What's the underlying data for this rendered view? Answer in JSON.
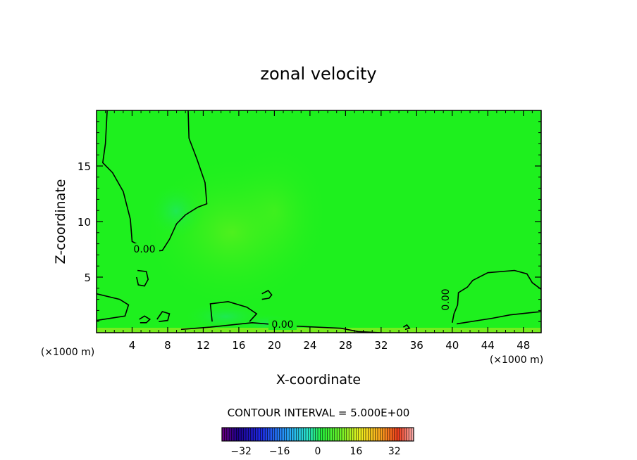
{
  "chart_data": {
    "type": "contour",
    "title": "zonal velocity",
    "xlabel": "X-coordinate",
    "ylabel": "Z-coordinate",
    "x_unit_left": "(×1000 m)",
    "x_unit_right": "(×1000 m)",
    "xlim": [
      0,
      50
    ],
    "ylim": [
      0,
      20
    ],
    "xticks": [
      4,
      8,
      12,
      16,
      20,
      24,
      28,
      32,
      36,
      40,
      44,
      48
    ],
    "yticks": [
      5,
      10,
      15
    ],
    "contour_labels": [
      "0.00",
      "0.00",
      "0.00"
    ],
    "contour_interval_text": "CONTOUR INTERVAL = 5.000E+00",
    "colorbar": {
      "ticks": [
        -32,
        -16,
        0,
        16,
        32
      ],
      "range": [
        -40,
        40
      ]
    },
    "field_color": "#1ef01e",
    "contour_color": "#000000",
    "contour_zero_lines": [
      [
        [
          1.2,
          20
        ],
        [
          1.0,
          17
        ],
        [
          0.7,
          15.3
        ],
        [
          1.8,
          14.4
        ],
        [
          3.0,
          12.7
        ],
        [
          3.8,
          10.2
        ],
        [
          4.0,
          8.2
        ],
        [
          5.0,
          7.8
        ],
        [
          6.2,
          7.3
        ],
        [
          7.4,
          7.4
        ],
        [
          8.2,
          8.4
        ],
        [
          9.0,
          9.8
        ],
        [
          10.0,
          10.6
        ],
        [
          11.4,
          11.3
        ],
        [
          12.4,
          11.6
        ],
        [
          12.2,
          13.5
        ],
        [
          11.3,
          15.6
        ],
        [
          10.4,
          17.5
        ],
        [
          10.3,
          20
        ]
      ],
      [
        [
          40.0,
          0.9
        ],
        [
          40.2,
          1.7
        ],
        [
          40.6,
          2.5
        ],
        [
          40.7,
          3.6
        ],
        [
          41.7,
          4.1
        ],
        [
          42.3,
          4.7
        ],
        [
          44.0,
          5.4
        ],
        [
          47.0,
          5.6
        ],
        [
          48.4,
          5.3
        ],
        [
          49.0,
          4.5
        ],
        [
          50,
          3.9
        ]
      ],
      [
        [
          0,
          3.5
        ],
        [
          2.6,
          3.0
        ],
        [
          3.6,
          2.5
        ],
        [
          3.2,
          1.5
        ],
        [
          0,
          1.1
        ]
      ],
      [
        [
          9.5,
          0.3
        ],
        [
          12.8,
          0.5
        ],
        [
          17.5,
          0.9
        ],
        [
          22,
          0.6
        ],
        [
          27.5,
          0.4
        ],
        [
          29.4,
          0.1
        ],
        [
          32,
          0.0
        ]
      ],
      [
        [
          13.0,
          1.0
        ],
        [
          12.8,
          2.6
        ],
        [
          14.8,
          2.8
        ],
        [
          16.9,
          2.3
        ],
        [
          18.0,
          1.7
        ],
        [
          17.2,
          1.0
        ]
      ],
      [
        [
          4.6,
          5.6
        ],
        [
          5.6,
          5.5
        ],
        [
          5.8,
          4.8
        ],
        [
          5.4,
          4.2
        ],
        [
          4.7,
          4.3
        ],
        [
          4.5,
          5.0
        ]
      ],
      [
        [
          18.6,
          3.0
        ],
        [
          19.4,
          3.1
        ],
        [
          19.7,
          3.4
        ],
        [
          19.3,
          3.8
        ],
        [
          18.6,
          3.5
        ]
      ],
      [
        [
          4.8,
          1.2
        ],
        [
          5.4,
          1.5
        ],
        [
          6.0,
          1.2
        ],
        [
          5.6,
          0.9
        ],
        [
          4.9,
          0.9
        ]
      ],
      [
        [
          6.8,
          1.2
        ],
        [
          7.4,
          1.9
        ],
        [
          8.2,
          1.7
        ],
        [
          8.0,
          1.1
        ],
        [
          7.0,
          1.0
        ]
      ],
      [
        [
          40.5,
          0.8
        ],
        [
          44.5,
          1.3
        ],
        [
          46.5,
          1.6
        ],
        [
          48.8,
          1.8
        ],
        [
          50,
          1.9
        ]
      ],
      [
        [
          34.5,
          0.5
        ],
        [
          34.9,
          0.7
        ],
        [
          35.2,
          0.4
        ],
        [
          34.7,
          0.3
        ]
      ]
    ]
  }
}
